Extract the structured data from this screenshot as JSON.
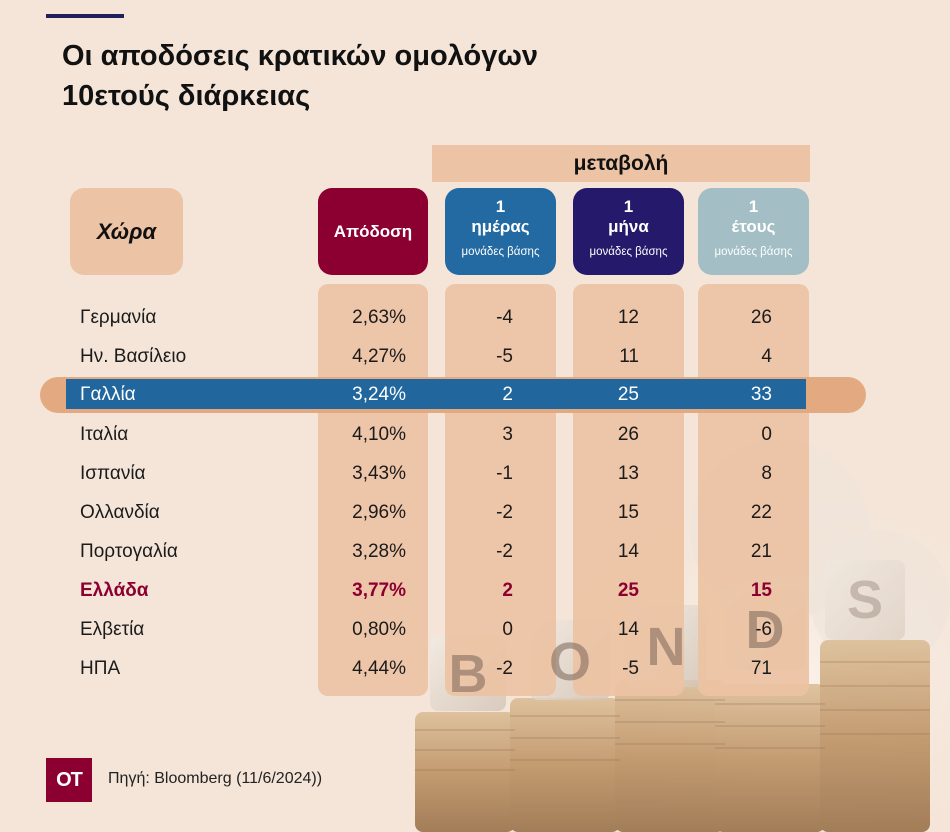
{
  "title_lines": [
    "Οι αποδόσεις κρατικών ομολόγων",
    "10ετούς διάρκειας"
  ],
  "change_header": "μεταβολή",
  "headers": {
    "country": "Χώρα",
    "yield": "Απόδοση",
    "day": {
      "num": "1",
      "period": "ημέρας",
      "unit": "μονάδες βάσης"
    },
    "month": {
      "num": "1",
      "period": "μήνα",
      "unit": "μονάδες βάσης"
    },
    "year": {
      "num": "1",
      "period": "έτους",
      "unit": "μονάδες βάσης"
    }
  },
  "colors": {
    "yield_header": "#8b0030",
    "day_header": "#236aa2",
    "month_header": "#25196b",
    "year_header": "#a3bec4",
    "highlight_row": "#21679e",
    "emphasis_text": "#8b0030"
  },
  "chart_data": {
    "type": "table",
    "columns": [
      "Χώρα",
      "Απόδοση",
      "1 ημέρας μονάδες βάσης",
      "1 μήνα μονάδες βάσης",
      "1 έτους μονάδες βάσης"
    ],
    "rows": [
      {
        "country": "Γερμανία",
        "yield": "2,63%",
        "day": "-4",
        "month": "12",
        "year": "26",
        "style": "normal"
      },
      {
        "country": "Ην. Βασίλειο",
        "yield": "4,27%",
        "day": "-5",
        "month": "11",
        "year": "4",
        "style": "normal"
      },
      {
        "country": "Γαλλία",
        "yield": "3,24%",
        "day": "2",
        "month": "25",
        "year": "33",
        "style": "highlight"
      },
      {
        "country": "Ιταλία",
        "yield": "4,10%",
        "day": "3",
        "month": "26",
        "year": "0",
        "style": "normal"
      },
      {
        "country": "Ισπανία",
        "yield": "3,43%",
        "day": "-1",
        "month": "13",
        "year": "8",
        "style": "normal"
      },
      {
        "country": "Ολλανδία",
        "yield": "2,96%",
        "day": "-2",
        "month": "15",
        "year": "22",
        "style": "normal"
      },
      {
        "country": "Πορτογαλία",
        "yield": "3,28%",
        "day": "-2",
        "month": "14",
        "year": "21",
        "style": "normal"
      },
      {
        "country": "Ελλάδα",
        "yield": "3,77%",
        "day": "2",
        "month": "25",
        "year": "15",
        "style": "emphasis"
      },
      {
        "country": "Ελβετία",
        "yield": "0,80%",
        "day": "0",
        "month": "14",
        "year": "-6",
        "style": "normal"
      },
      {
        "country": "ΗΠΑ",
        "yield": "4,44%",
        "day": "-2",
        "month": "-5",
        "year": "71",
        "style": "normal"
      }
    ]
  },
  "background_letters": [
    "B",
    "O",
    "N",
    "D",
    "S"
  ],
  "logo_text": "OT",
  "source": "Πηγή: Bloomberg (11/6/2024))"
}
